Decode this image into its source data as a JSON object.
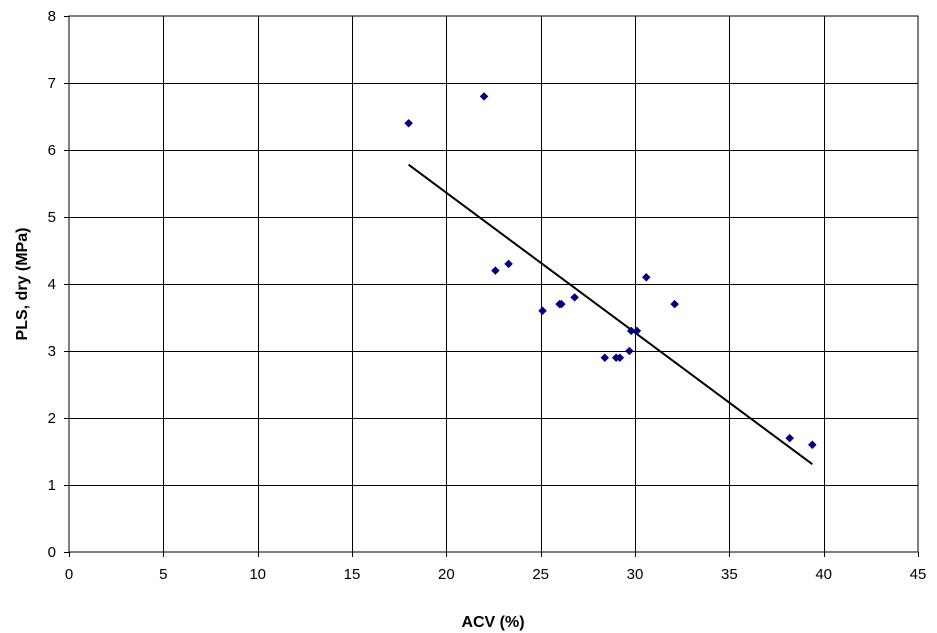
{
  "chart_data": {
    "type": "scatter",
    "title": "",
    "xlabel": "ACV (%)",
    "ylabel": "PLS, dry (MPa)",
    "xlim": [
      0,
      45
    ],
    "ylim": [
      0,
      8
    ],
    "x_ticks": [
      0,
      5,
      10,
      15,
      20,
      25,
      30,
      35,
      40,
      45
    ],
    "y_ticks": [
      0,
      1,
      2,
      3,
      4,
      5,
      6,
      7,
      8
    ],
    "grid": true,
    "legend": "none",
    "series": [
      {
        "x": [
          18.0,
          22.0,
          22.6,
          23.3,
          25.1,
          26.0,
          26.1,
          26.8,
          28.4,
          29.0,
          29.2,
          29.7,
          29.8,
          30.1,
          30.6,
          32.1,
          38.2,
          39.4
        ],
        "y": [
          6.4,
          6.8,
          4.2,
          4.3,
          3.6,
          3.7,
          3.7,
          3.8,
          2.9,
          2.9,
          2.9,
          3.0,
          3.3,
          3.3,
          4.1,
          3.7,
          1.7,
          1.6
        ],
        "color": "#000080"
      }
    ],
    "trendline": {
      "x": [
        18.0,
        39.4
      ],
      "y": [
        5.78,
        1.31
      ],
      "color": "#000000"
    }
  }
}
